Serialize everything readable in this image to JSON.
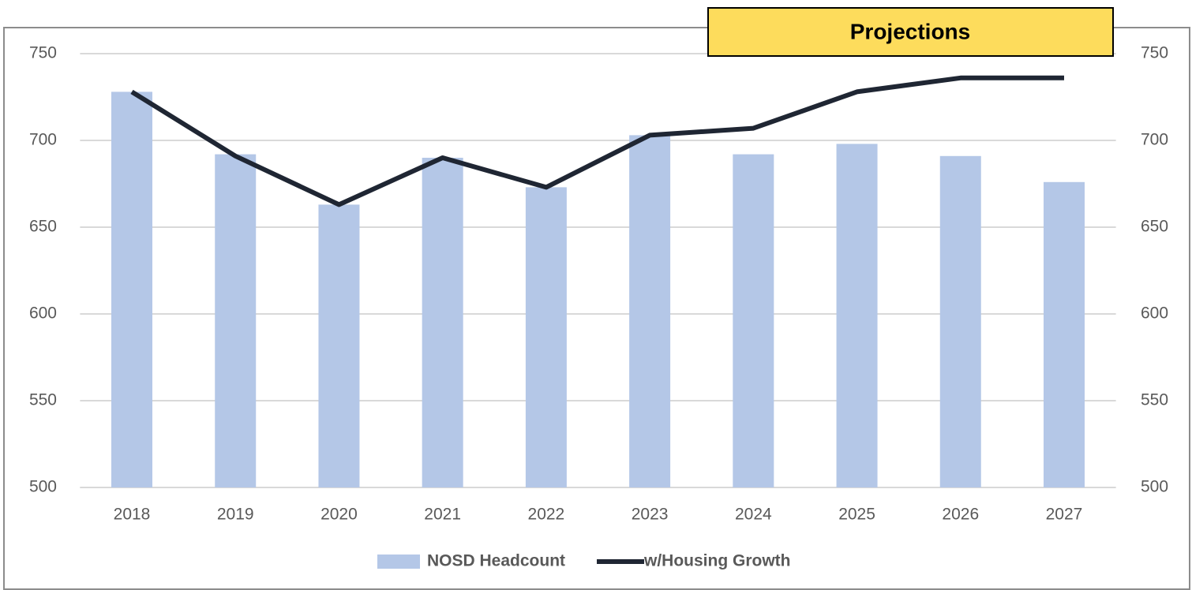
{
  "chart_data": {
    "type": "bar",
    "categories": [
      "2018",
      "2019",
      "2020",
      "2021",
      "2022",
      "2023",
      "2024",
      "2025",
      "2026",
      "2027"
    ],
    "series": [
      {
        "name": "NOSD Headcount",
        "type": "bar",
        "color": "#b4c7e7",
        "values": [
          728,
          692,
          663,
          690,
          673,
          703,
          692,
          698,
          691,
          676
        ]
      },
      {
        "name": "w/Housing Growth",
        "type": "line",
        "axis": "y2",
        "color": "#1f2633",
        "values": [
          728,
          691,
          663,
          690,
          673,
          703,
          707,
          728,
          736,
          736
        ]
      }
    ],
    "ylim": [
      500,
      750
    ],
    "yticks": [
      500,
      550,
      600,
      650,
      700,
      750
    ],
    "y2lim": [
      500,
      750
    ],
    "y2ticks": [
      500,
      550,
      600,
      650,
      700,
      750
    ],
    "grid": true,
    "legend": "bottom",
    "annotations": [
      "Projections"
    ]
  }
}
